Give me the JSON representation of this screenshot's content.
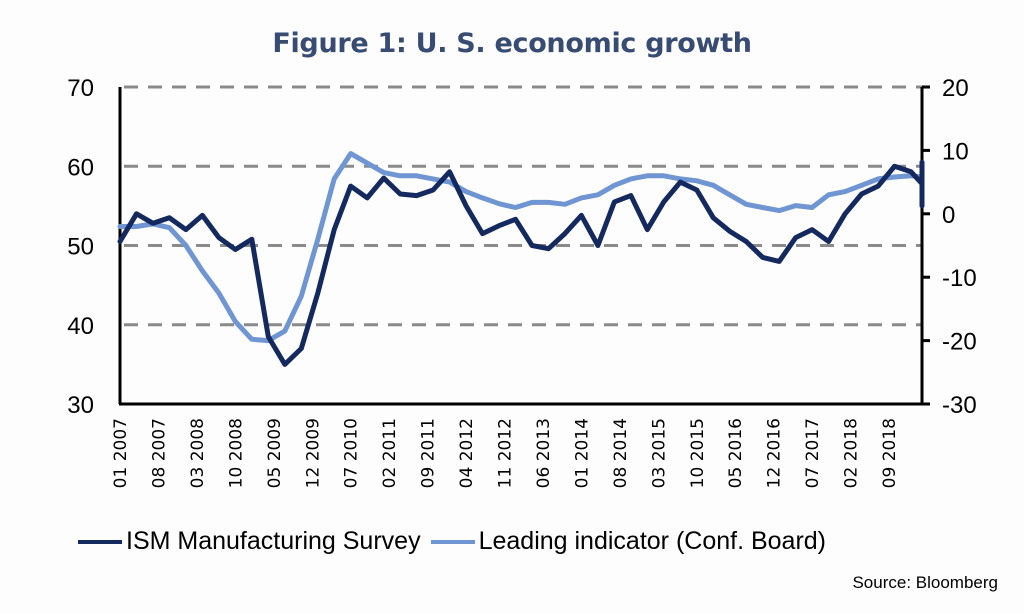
{
  "chart_data": {
    "type": "line",
    "title": "Figure 1: U. S. economic growth",
    "source": "Source: Bloomberg",
    "xlabel": "",
    "ylabel": "",
    "x_tick_labels": [
      "01 2007",
      "08 2007",
      "03 2008",
      "10 2008",
      "05 2009",
      "12 2009",
      "07 2010",
      "02 2011",
      "09 2011",
      "04 2012",
      "11 2012",
      "06 2013",
      "01 2014",
      "08 2014",
      "03 2015",
      "10 2015",
      "05 2016",
      "12 2016",
      "07 2017",
      "02 2018",
      "09 2018"
    ],
    "y_left": {
      "range": [
        30,
        70
      ],
      "ticks": [
        30,
        40,
        50,
        60,
        70
      ]
    },
    "y_right": {
      "range": [
        -30,
        20
      ],
      "ticks": [
        -30,
        -20,
        -10,
        0,
        10,
        20
      ]
    },
    "grid": "horizontal dashed",
    "legend_position": "bottom",
    "colors": {
      "ism": "#14295e",
      "leading": "#6f95d2",
      "grid": "#8a8a8a",
      "title": "#374b73"
    },
    "series": [
      {
        "name": "ISM Manufacturing Survey",
        "axis": "left",
        "x_month_index_step": 3,
        "values": [
          50.5,
          54.0,
          52.8,
          53.5,
          52.0,
          53.8,
          51.0,
          49.5,
          50.8,
          38.5,
          35.0,
          37.0,
          44.0,
          52.0,
          57.5,
          56.0,
          58.5,
          56.5,
          56.3,
          57.0,
          59.3,
          55.0,
          51.5,
          52.5,
          53.3,
          50.0,
          49.6,
          51.5,
          53.8,
          50.0,
          55.5,
          56.3,
          52.0,
          55.5,
          58.0,
          57.0,
          53.5,
          51.8,
          50.5,
          48.5,
          48.0,
          51.0,
          52.0,
          50.5,
          54.0,
          56.5,
          57.5,
          60.0,
          59.3,
          57.8,
          59.5,
          60.5,
          58.5,
          55.0
        ]
      },
      {
        "name": "Leading indicator (Conf. Board)",
        "axis": "right",
        "x_month_index_step": 3,
        "values": [
          -2.0,
          -2.0,
          -1.6,
          -2.2,
          -5.0,
          -9.0,
          -12.5,
          -17.0,
          -19.8,
          -20.0,
          -18.5,
          -13.0,
          -4.0,
          5.5,
          9.5,
          8.0,
          6.5,
          6.0,
          6.0,
          5.5,
          5.0,
          3.5,
          2.5,
          1.6,
          1.0,
          1.8,
          1.8,
          1.5,
          2.5,
          3.0,
          4.5,
          5.5,
          6.0,
          6.0,
          5.5,
          5.2,
          4.5,
          3.0,
          1.5,
          1.0,
          0.5,
          1.3,
          1.0,
          3.0,
          3.5,
          4.5,
          5.5,
          5.8,
          6.0,
          5.8,
          6.5,
          5.5,
          4.0,
          3.0
        ]
      }
    ]
  }
}
